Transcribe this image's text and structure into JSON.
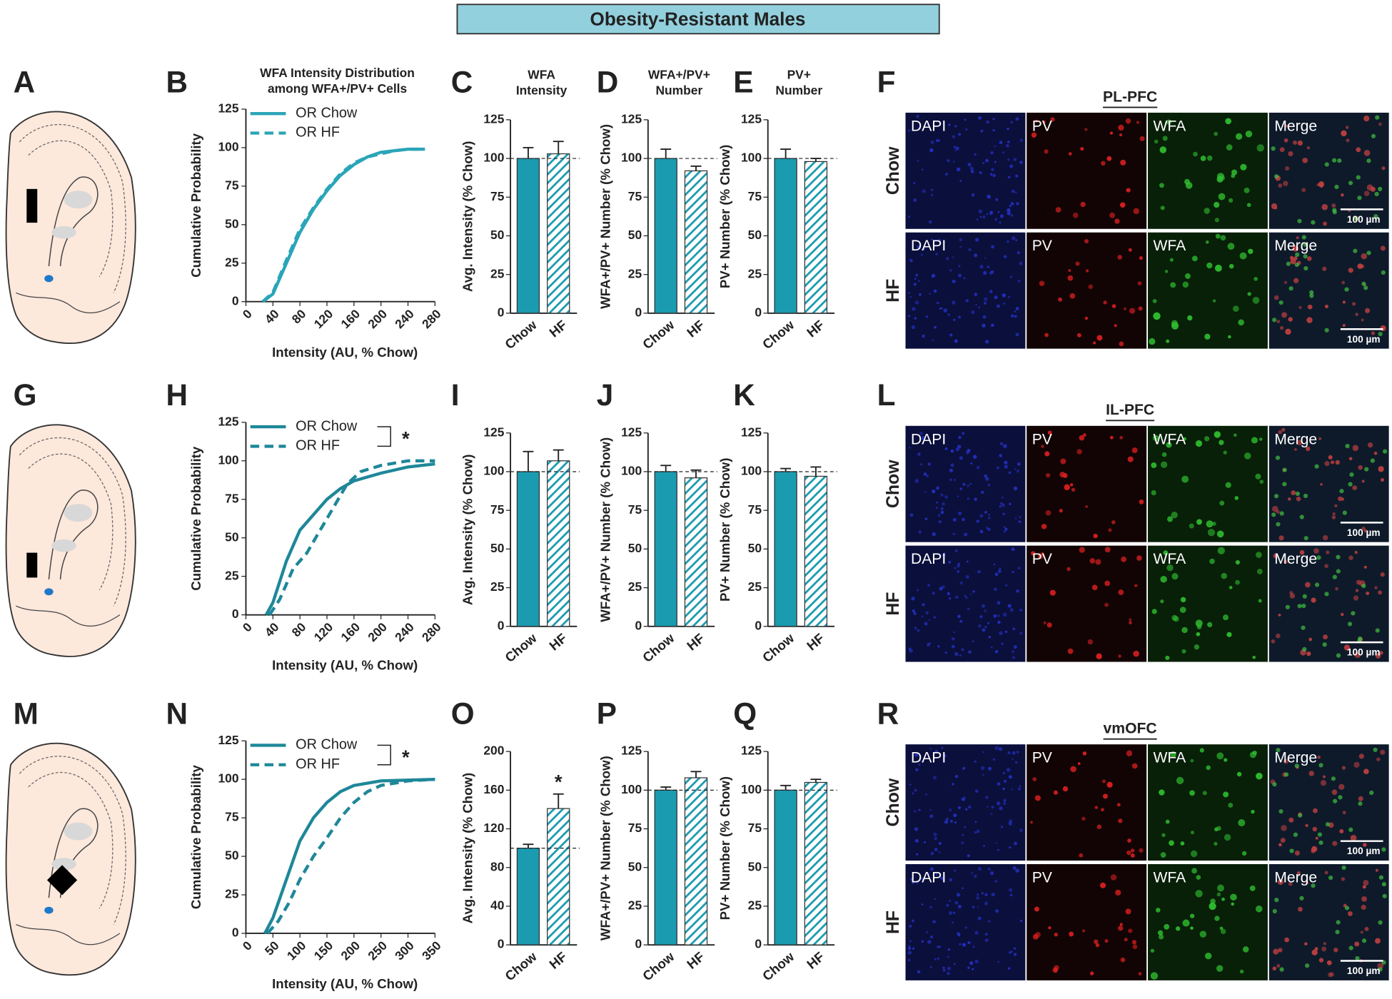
{
  "header": {
    "title": "Obesity-Resistant Males"
  },
  "diagrams": [
    {
      "panel": "A"
    },
    {
      "panel": "G"
    },
    {
      "panel": "M"
    }
  ],
  "micrographs": [
    {
      "panel": "F",
      "title": "PL-PFC",
      "rows": [
        "Chow",
        "HF"
      ],
      "channels": [
        "DAPI",
        "PV",
        "WFA",
        "Merge"
      ],
      "scale_bar": "100 µm"
    },
    {
      "panel": "L",
      "title": "IL-PFC",
      "rows": [
        "Chow",
        "HF"
      ],
      "channels": [
        "DAPI",
        "PV",
        "WFA",
        "Merge"
      ],
      "scale_bar": "100 µm"
    },
    {
      "panel": "R",
      "title": "vmOFC",
      "rows": [
        "Chow",
        "HF"
      ],
      "channels": [
        "DAPI",
        "PV",
        "WFA",
        "Merge"
      ],
      "scale_bar": "100 µm"
    }
  ],
  "chart_data": [
    {
      "type": "line",
      "panel": "B",
      "title": [
        "WFA Intensity Distribution",
        "among WFA+/PV+ Cells"
      ],
      "xlabel": "Intensity (AU, % Chow)",
      "ylabel": "Cumulative Probability",
      "xlim": [
        0,
        280
      ],
      "xticks": [
        0,
        40,
        80,
        120,
        160,
        200,
        240,
        280
      ],
      "ylim": [
        0,
        125
      ],
      "yticks": [
        0,
        25,
        50,
        75,
        100,
        125
      ],
      "series": [
        {
          "name": "OR Chow",
          "color": "#2aa5b8",
          "dash": false,
          "x": [
            25,
            40,
            60,
            80,
            100,
            120,
            140,
            160,
            180,
            200,
            220,
            240,
            265
          ],
          "values": [
            0,
            5,
            25,
            45,
            60,
            72,
            82,
            89,
            94,
            97,
            98,
            99,
            99
          ]
        },
        {
          "name": "OR HF",
          "color": "#2aa5b8",
          "dash": true,
          "x": [
            25,
            40,
            60,
            80,
            100,
            120,
            140,
            160,
            180,
            200,
            220,
            240,
            265
          ],
          "values": [
            0,
            6,
            27,
            47,
            61,
            73,
            83,
            90,
            94,
            96,
            98,
            99,
            99
          ]
        }
      ]
    },
    {
      "type": "bar",
      "panel": "C",
      "title": [
        "WFA",
        "Intensity"
      ],
      "ylabel": "Avg. Intensity (% Chow)",
      "categories": [
        "Chow",
        "HF"
      ],
      "values": [
        100,
        103
      ],
      "errors": [
        7,
        8
      ],
      "patterns": [
        "solid",
        "hatch"
      ],
      "color": "#1a9bb0",
      "reference_line": 100,
      "ylim": [
        0,
        125
      ],
      "yticks": [
        0,
        25,
        50,
        75,
        100,
        125
      ]
    },
    {
      "type": "bar",
      "panel": "D",
      "title": [
        "WFA+/PV+",
        "Number"
      ],
      "ylabel": "WFA+/PV+ Number (% Chow)",
      "categories": [
        "Chow",
        "HF"
      ],
      "values": [
        100,
        92
      ],
      "errors": [
        6,
        3
      ],
      "patterns": [
        "solid",
        "hatch"
      ],
      "color": "#1a9bb0",
      "reference_line": 100,
      "ylim": [
        0,
        125
      ],
      "yticks": [
        0,
        25,
        50,
        75,
        100,
        125
      ]
    },
    {
      "type": "bar",
      "panel": "E",
      "title": [
        "PV+",
        "Number"
      ],
      "ylabel": "PV+ Number (% Chow)",
      "categories": [
        "Chow",
        "HF"
      ],
      "values": [
        100,
        98
      ],
      "errors": [
        6,
        2
      ],
      "patterns": [
        "solid",
        "hatch"
      ],
      "color": "#1a9bb0",
      "reference_line": 100,
      "ylim": [
        0,
        125
      ],
      "yticks": [
        0,
        25,
        50,
        75,
        100,
        125
      ]
    },
    {
      "type": "line",
      "panel": "H",
      "xlabel": "Intensity (AU, % Chow)",
      "ylabel": "Cumulative Probability",
      "significance_label": "*",
      "xlim": [
        0,
        280
      ],
      "xticks": [
        0,
        40,
        80,
        120,
        160,
        200,
        240,
        280
      ],
      "ylim": [
        0,
        125
      ],
      "yticks": [
        0,
        25,
        50,
        75,
        100,
        125
      ],
      "series": [
        {
          "name": "OR Chow",
          "color": "#1e8799",
          "dash": false,
          "x": [
            30,
            40,
            60,
            80,
            100,
            120,
            140,
            160,
            200,
            240,
            280
          ],
          "values": [
            0,
            8,
            35,
            55,
            65,
            75,
            82,
            87,
            92,
            96,
            98
          ]
        },
        {
          "name": "OR HF",
          "color": "#1e8799",
          "dash": true,
          "x": [
            35,
            50,
            70,
            90,
            110,
            130,
            150,
            170,
            200,
            240,
            280
          ],
          "values": [
            0,
            10,
            30,
            40,
            55,
            70,
            85,
            93,
            97,
            100,
            100
          ]
        }
      ]
    },
    {
      "type": "bar",
      "panel": "I",
      "ylabel": "Avg. Intensity (% Chow)",
      "categories": [
        "Chow",
        "HF"
      ],
      "values": [
        100,
        107
      ],
      "errors": [
        13,
        7
      ],
      "patterns": [
        "solid",
        "hatch"
      ],
      "color": "#1a9bb0",
      "reference_line": 100,
      "ylim": [
        0,
        125
      ],
      "yticks": [
        0,
        25,
        50,
        75,
        100,
        125
      ]
    },
    {
      "type": "bar",
      "panel": "J",
      "ylabel": "WFA+/PV+ Number (% Chow)",
      "categories": [
        "Chow",
        "HF"
      ],
      "values": [
        100,
        96
      ],
      "errors": [
        4,
        5
      ],
      "patterns": [
        "solid",
        "hatch"
      ],
      "color": "#1a9bb0",
      "reference_line": 100,
      "ylim": [
        0,
        125
      ],
      "yticks": [
        0,
        25,
        50,
        75,
        100,
        125
      ]
    },
    {
      "type": "bar",
      "panel": "K",
      "ylabel": "PV+ Number (% Chow)",
      "categories": [
        "Chow",
        "HF"
      ],
      "values": [
        100,
        97
      ],
      "errors": [
        2,
        6
      ],
      "patterns": [
        "solid",
        "hatch"
      ],
      "color": "#1a9bb0",
      "reference_line": 100,
      "ylim": [
        0,
        125
      ],
      "yticks": [
        0,
        25,
        50,
        75,
        100,
        125
      ]
    },
    {
      "type": "line",
      "panel": "N",
      "xlabel": "Intensity (AU, % Chow)",
      "ylabel": "Cumulative Probability",
      "significance_label": "*",
      "xlim": [
        0,
        350
      ],
      "xticks": [
        0,
        50,
        100,
        150,
        200,
        250,
        300,
        350
      ],
      "ylim": [
        0,
        125
      ],
      "yticks": [
        0,
        25,
        50,
        75,
        100,
        125
      ],
      "series": [
        {
          "name": "OR Chow",
          "color": "#1e8799",
          "dash": false,
          "x": [
            35,
            50,
            75,
            100,
            125,
            150,
            175,
            200,
            250,
            350
          ],
          "values": [
            0,
            10,
            35,
            60,
            75,
            85,
            92,
            96,
            99,
            100
          ]
        },
        {
          "name": "OR HF",
          "color": "#1e8799",
          "dash": true,
          "x": [
            40,
            60,
            80,
            100,
            125,
            150,
            175,
            200,
            225,
            250,
            300,
            350
          ],
          "values": [
            0,
            8,
            20,
            35,
            50,
            62,
            75,
            85,
            92,
            96,
            99,
            100
          ]
        }
      ]
    },
    {
      "type": "bar",
      "panel": "O",
      "ylabel": "Avg. Intensity (% Chow)",
      "significance_label": "*",
      "categories": [
        "Chow",
        "HF"
      ],
      "values": [
        100,
        141
      ],
      "errors": [
        4,
        15
      ],
      "patterns": [
        "solid",
        "hatch"
      ],
      "color": "#1a9bb0",
      "reference_line": 100,
      "ylim": [
        0,
        200
      ],
      "yticks": [
        0,
        40,
        80,
        120,
        160,
        200
      ]
    },
    {
      "type": "bar",
      "panel": "P",
      "ylabel": "WFA+/PV+ Number (% Chow)",
      "categories": [
        "Chow",
        "HF"
      ],
      "values": [
        100,
        108
      ],
      "errors": [
        2,
        4
      ],
      "patterns": [
        "solid",
        "hatch"
      ],
      "color": "#1a9bb0",
      "reference_line": 100,
      "ylim": [
        0,
        125
      ],
      "yticks": [
        0,
        25,
        50,
        75,
        100,
        125
      ]
    },
    {
      "type": "bar",
      "panel": "Q",
      "ylabel": "PV+ Number (% Chow)",
      "categories": [
        "Chow",
        "HF"
      ],
      "values": [
        100,
        105
      ],
      "errors": [
        3,
        2
      ],
      "patterns": [
        "solid",
        "hatch"
      ],
      "color": "#1a9bb0",
      "reference_line": 100,
      "ylim": [
        0,
        125
      ],
      "yticks": [
        0,
        25,
        50,
        75,
        100,
        125
      ]
    }
  ]
}
